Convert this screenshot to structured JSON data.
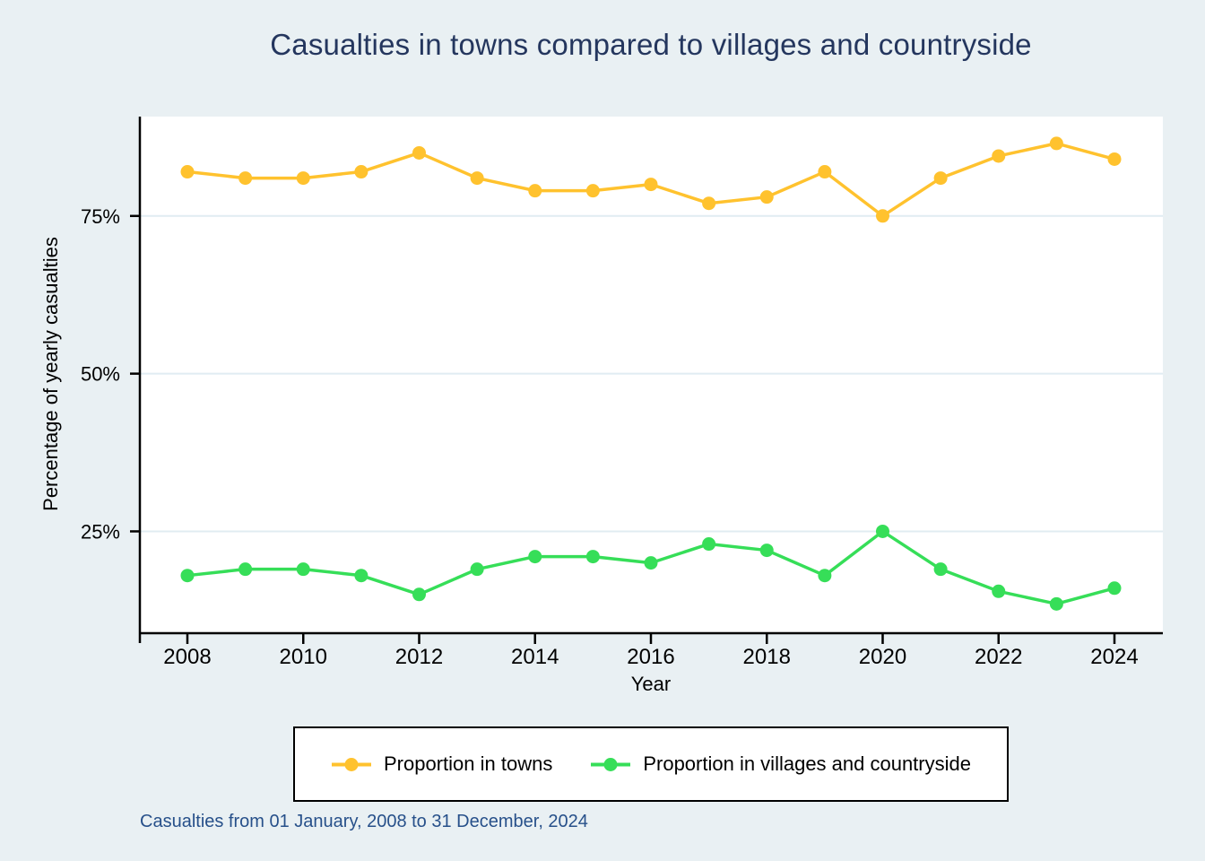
{
  "page": {
    "background_color": "#E9F0F3",
    "plot_background_color": "#FFFFFF",
    "gridline_color": "#E1ECF2",
    "axis_color": "#000000"
  },
  "title": {
    "text": "Casualties in towns compared to villages and countryside",
    "color": "#24365E"
  },
  "caption": {
    "text": "Casualties from 01 January, 2008 to 31 December, 2024",
    "color": "#27508A"
  },
  "chart_data": {
    "type": "line",
    "title": "Casualties in towns compared to villages and countryside",
    "xlabel": "Year",
    "ylabel": "Percentage of yearly casualties",
    "x": [
      2008,
      2009,
      2010,
      2011,
      2012,
      2013,
      2014,
      2015,
      2016,
      2017,
      2018,
      2019,
      2020,
      2021,
      2022,
      2023,
      2024
    ],
    "series": [
      {
        "name": "Proportion in towns",
        "color": "#FFC22E",
        "values": [
          82,
          81,
          81,
          82,
          85,
          81,
          79,
          79,
          80,
          77,
          78,
          82,
          75,
          81,
          84.5,
          86.5,
          84
        ]
      },
      {
        "name": "Proportion in villages and countryside",
        "color": "#36DE58",
        "values": [
          18,
          19,
          19,
          18,
          15,
          19,
          21,
          21,
          20,
          23,
          22,
          18,
          25,
          19,
          15.5,
          13.5,
          16
        ]
      }
    ],
    "x_tick_years": [
      2008,
      2010,
      2012,
      2014,
      2016,
      2018,
      2020,
      2022,
      2024
    ],
    "y_ticks": [
      {
        "value": 25,
        "label": "25%"
      },
      {
        "value": 50,
        "label": "50%"
      },
      {
        "value": 75,
        "label": "75%"
      }
    ],
    "ylim": [
      9,
      90.75
    ],
    "grid": "horizontal",
    "legend_position": "bottom",
    "marker": "circle"
  }
}
